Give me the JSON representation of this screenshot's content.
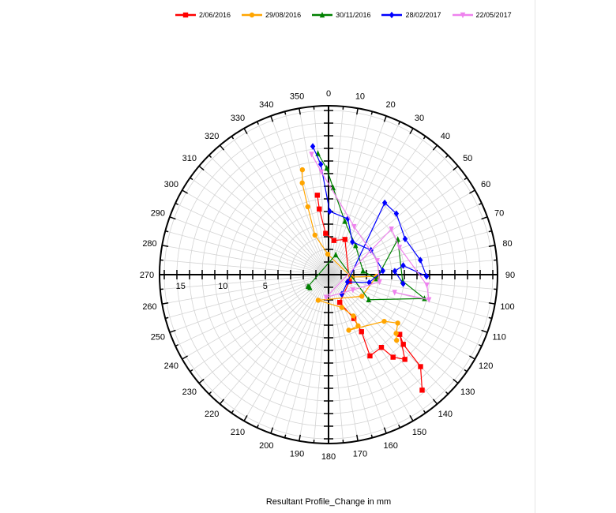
{
  "chart_data": {
    "type": "scatter",
    "subtype": "polar",
    "xlabel": "Resultant Profile_Change in mm",
    "angle_ticks": [
      0,
      10,
      20,
      30,
      40,
      50,
      60,
      70,
      80,
      90,
      100,
      110,
      120,
      130,
      140,
      150,
      160,
      170,
      180,
      190,
      200,
      210,
      220,
      230,
      240,
      250,
      260,
      270,
      280,
      290,
      300,
      310,
      320,
      330,
      340,
      350
    ],
    "radial_ticks": [
      "15",
      "10",
      "5",
      "0"
    ],
    "radial_tick_values": [
      15,
      10,
      5,
      0
    ],
    "radial_range": [
      -2.5,
      17.5
    ],
    "angle_direction": "clockwise from north",
    "grid": true,
    "legend_position": "top",
    "series": [
      {
        "name": "2/06/2016",
        "color": "#ff0000",
        "marker": "square",
        "points": [
          [
            352,
            7.0
          ],
          [
            352,
            5.35
          ],
          [
            356,
            2.4
          ],
          [
            9,
            1.6
          ],
          [
            25,
            2.1
          ],
          [
            108,
            0.1
          ],
          [
            158,
            1.05
          ],
          [
            150,
            3.5
          ],
          [
            150,
            5.3
          ],
          [
            153,
            8.3
          ],
          [
            144,
            8.15
          ],
          [
            142,
            9.9
          ],
          [
            138,
            11.0
          ],
          [
            130,
            8.5
          ],
          [
            133,
            9.6
          ],
          [
            135,
            12.9
          ],
          [
            141,
            15.1
          ]
        ]
      },
      {
        "name": "29/08/2016",
        "color": "#ffa500",
        "marker": "circle",
        "points": [
          [
            346,
            10.3
          ],
          [
            344,
            8.8
          ],
          [
            343,
            5.9
          ],
          [
            341,
            2.45
          ],
          [
            358,
            -0.07
          ],
          [
            96,
            0.2
          ],
          [
            92,
            3.2
          ],
          [
            123,
            2.2
          ],
          [
            202,
            0.77
          ],
          [
            158,
            1.7
          ],
          [
            149,
            3.2
          ],
          [
            150,
            4.5
          ],
          [
            160,
            4.5
          ],
          [
            130,
            6.1
          ],
          [
            125,
            7.5
          ],
          [
            131,
            8.1
          ],
          [
            134,
            8.7
          ]
        ]
      },
      {
        "name": "30/11/2016",
        "color": "#008000",
        "marker": "triangle-up",
        "points": [
          [
            355,
            11.9
          ],
          [
            359,
            10.1
          ],
          [
            3,
            7.8
          ],
          [
            17,
            4.1
          ],
          [
            43,
            2.2
          ],
          [
            84,
            1.6
          ],
          [
            95,
            3.2
          ],
          [
            63,
            6.7
          ],
          [
            95,
            6.3
          ],
          [
            104,
            9.2
          ],
          [
            122,
            3.1
          ],
          [
            20,
            0.0
          ],
          [
            240,
            0.3
          ],
          [
            235,
            0.2
          ]
        ]
      },
      {
        "name": "28/02/2017",
        "color": "#0000ff",
        "marker": "diamond",
        "points": [
          [
            353,
            12.8
          ],
          [
            356,
            10.6
          ],
          [
            1,
            5.0
          ],
          [
            19,
            4.5
          ],
          [
            36,
            2.3
          ],
          [
            60,
            3.3
          ],
          [
            86,
            3.95
          ],
          [
            101,
            2.4
          ],
          [
            111,
            -0.1
          ],
          [
            146,
            0.3
          ],
          [
            38,
            8.3
          ],
          [
            48,
            8.3
          ],
          [
            65,
            7.5
          ],
          [
            81,
            8.5
          ],
          [
            91,
            9.1
          ],
          [
            83,
            6.4
          ],
          [
            87,
            5.35
          ],
          [
            97,
            6.4
          ]
        ]
      },
      {
        "name": "22/05/2017",
        "color": "#ee82ee",
        "marker": "triangle-down",
        "points": [
          [
            352,
            11.9
          ],
          [
            356,
            9.7
          ],
          [
            28,
            3.95
          ],
          [
            74,
            3.5
          ],
          [
            98,
            3.6
          ],
          [
            122,
            0.9
          ],
          [
            186,
            0.2
          ],
          [
            54,
            6.7
          ],
          [
            69,
            6.5
          ],
          [
            96,
            9.2
          ],
          [
            104,
            9.75
          ],
          [
            105,
            5.6
          ]
        ]
      }
    ]
  }
}
